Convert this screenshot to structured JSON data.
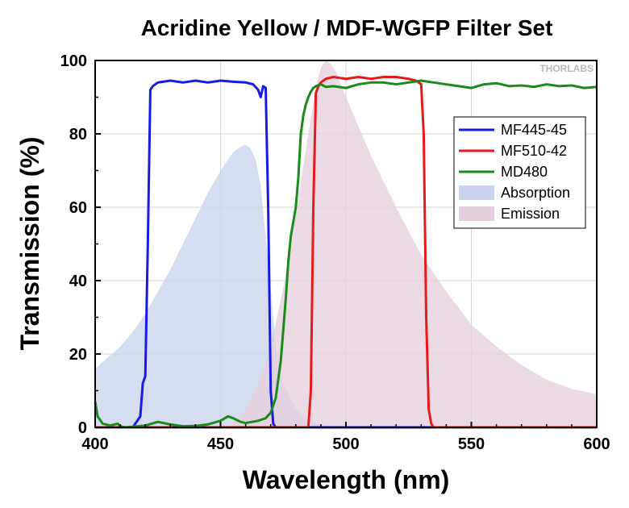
{
  "chart_data": {
    "type": "line",
    "title": "Acridine Yellow / MDF-WGFP Filter Set",
    "xlabel": "Wavelength (nm)",
    "ylabel": "Transmission (%)",
    "xlim": [
      400,
      600
    ],
    "ylim": [
      0,
      100
    ],
    "xticks": [
      400,
      450,
      500,
      550,
      600
    ],
    "yticks": [
      0,
      20,
      40,
      60,
      80,
      100
    ],
    "grid": true,
    "legend_position": "right",
    "watermark": "THORLABS",
    "series": [
      {
        "name": "MF445-45",
        "kind": "line",
        "color": "#1a1ae6",
        "x": [
          400,
          415,
          418,
          419,
          420,
          421,
          422,
          423,
          425,
          430,
          435,
          440,
          445,
          450,
          455,
          460,
          463,
          465,
          466,
          467,
          468,
          469,
          470,
          471,
          472,
          475,
          500,
          550,
          600
        ],
        "y": [
          0,
          0,
          3,
          12,
          14,
          50,
          92,
          93,
          94,
          94.5,
          94,
          94.5,
          94,
          94.5,
          94.2,
          94,
          93.5,
          92,
          90,
          93,
          92.5,
          60,
          10,
          1,
          0,
          0,
          0,
          0,
          0
        ]
      },
      {
        "name": "MF510-42",
        "kind": "line",
        "color": "#e61a1a",
        "x": [
          400,
          485,
          486,
          487,
          488,
          489,
          490,
          492,
          495,
          500,
          505,
          510,
          515,
          520,
          525,
          528,
          530,
          531,
          532,
          533,
          534,
          535,
          540,
          600
        ],
        "y": [
          0,
          0,
          10,
          60,
          91,
          93,
          94,
          95,
          95.5,
          95,
          95.5,
          95,
          95.5,
          95.5,
          95,
          94.5,
          93.5,
          80,
          30,
          5,
          1,
          0,
          0,
          0
        ]
      },
      {
        "name": "MD480",
        "kind": "line",
        "color": "#1a8a1a",
        "x": [
          400,
          401,
          403,
          406,
          409,
          410,
          412,
          420,
          425,
          430,
          435,
          440,
          445,
          450,
          453,
          455,
          458,
          460,
          465,
          468,
          470,
          472,
          474,
          476,
          477,
          478,
          479,
          480,
          481,
          482,
          483,
          484,
          485,
          486,
          487,
          488,
          490,
          492,
          495,
          500,
          505,
          510,
          515,
          520,
          525,
          530,
          535,
          540,
          545,
          550,
          555,
          560,
          565,
          570,
          575,
          580,
          585,
          590,
          595,
          600
        ],
        "y": [
          7,
          3,
          1,
          0.5,
          1,
          0.3,
          0,
          0.5,
          1.5,
          0.8,
          0.3,
          0.4,
          0.8,
          1.8,
          3,
          2.5,
          1.5,
          1.2,
          1.8,
          2.5,
          4,
          8,
          18,
          35,
          45,
          52,
          56,
          60,
          68,
          80,
          85,
          88,
          90,
          91.5,
          92.5,
          93,
          93.5,
          92.8,
          93,
          92.5,
          93.5,
          94,
          94,
          93.5,
          94,
          94.5,
          94,
          93.5,
          93,
          92.5,
          93.5,
          93.8,
          93,
          93.2,
          92.8,
          93.5,
          93,
          93.2,
          92.5,
          92.8
        ]
      },
      {
        "name": "Absorption",
        "kind": "area",
        "color": "#cbd4ee",
        "x": [
          400,
          405,
          410,
          415,
          420,
          425,
          430,
          435,
          440,
          445,
          450,
          455,
          458,
          460,
          462,
          464,
          466,
          468,
          470,
          472,
          475,
          480,
          485,
          490,
          495,
          500
        ],
        "y": [
          16,
          19,
          22,
          26,
          31,
          37,
          43,
          50,
          57,
          64,
          70,
          75,
          76.5,
          77,
          76,
          73,
          66,
          52,
          38,
          22,
          12,
          5,
          2,
          0.8,
          0.3,
          0
        ]
      },
      {
        "name": "Emission",
        "kind": "area",
        "color": "#e6cfdc",
        "x": [
          450,
          455,
          460,
          465,
          470,
          475,
          480,
          485,
          488,
          490,
          492,
          494,
          496,
          500,
          505,
          510,
          520,
          530,
          540,
          550,
          560,
          570,
          580,
          590,
          600
        ],
        "y": [
          0,
          1,
          5,
          12,
          22,
          38,
          58,
          80,
          93,
          98,
          100,
          99,
          97,
          90,
          82,
          74,
          60,
          47,
          37,
          28,
          22,
          17,
          13,
          10.5,
          9
        ]
      }
    ]
  }
}
